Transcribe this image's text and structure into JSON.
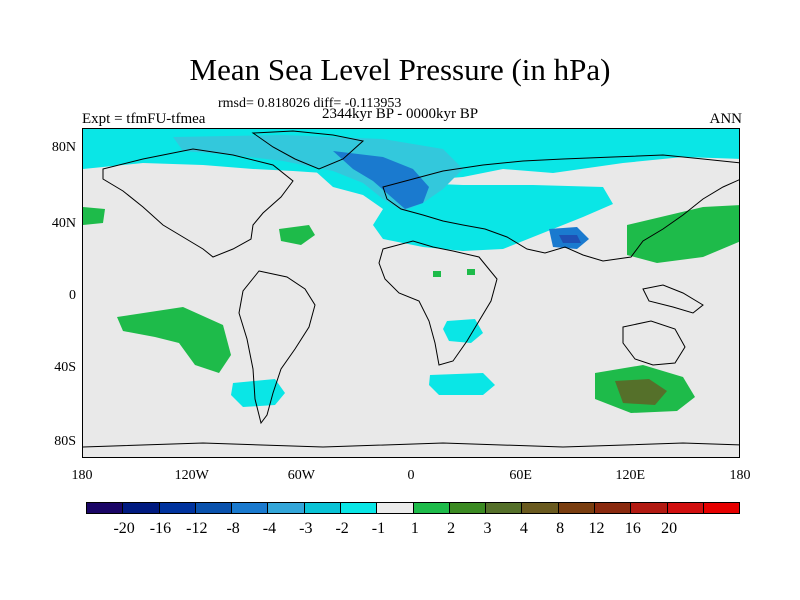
{
  "title": "Mean Sea Level Pressure (in hPa)",
  "stats": "rmsd= 0.818026 diff= -0.113953",
  "period": "2344kyr BP - 0000kyr BP",
  "experiment": "Expt = tfmFU-tfmea",
  "season": "ANN",
  "y_ticks": [
    "80N",
    "40N",
    "0",
    "40S",
    "80S"
  ],
  "x_ticks": [
    "180",
    "120W",
    "60W",
    "0",
    "60E",
    "120E",
    "180"
  ],
  "colorbar": {
    "colors": [
      "#1a0566",
      "#001a80",
      "#00339e",
      "#0a52ad",
      "#1a7acf",
      "#33a6d9",
      "#0ac3d6",
      "#0ae6e6",
      "#ebebeb",
      "#1ebb4a",
      "#3b8a22",
      "#55702a",
      "#6a5a1f",
      "#7a3e10",
      "#8a2a0f",
      "#b21a12",
      "#d10f0f",
      "#e60000"
    ],
    "labels": [
      "-20",
      "-16",
      "-12",
      "-8",
      "-4",
      "-3",
      "-2",
      "-1",
      "1",
      "2",
      "3",
      "4",
      "8",
      "12",
      "16",
      "20"
    ]
  },
  "map_colors": {
    "land_bg": "#e9e9e9",
    "light_cyan": "#0ae6e6",
    "cyan": "#33c8dc",
    "blue": "#1a7acf",
    "dark_blue": "#1e50b4",
    "green": "#1ebb4a",
    "olive": "#55702a"
  }
}
